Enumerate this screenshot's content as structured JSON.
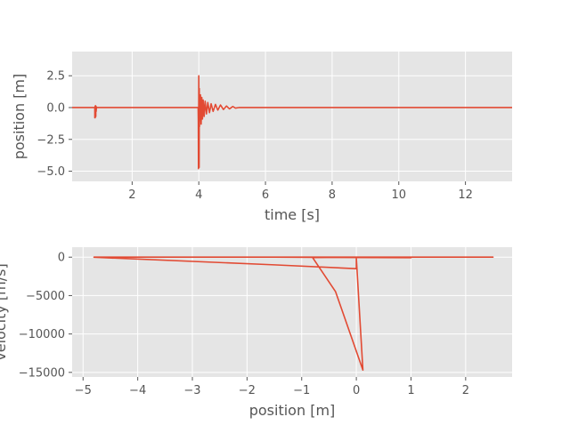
{
  "chart_data": [
    {
      "type": "line",
      "xlabel": "time [s]",
      "ylabel": "position [m]",
      "xlim": [
        0.2,
        13.4
      ],
      "ylim": [
        -5.8,
        4.4
      ],
      "xticks": [
        2,
        4,
        6,
        8,
        10,
        12
      ],
      "xtick_labels": [
        "2",
        "4",
        "6",
        "8",
        "10",
        "12"
      ],
      "yticks": [
        2.5,
        0.0,
        -2.5,
        -5.0
      ],
      "ytick_labels": [
        "2.5",
        "0.0",
        "−2.5",
        "−5.0"
      ],
      "grid": true,
      "series": [
        {
          "color": "#E24A33",
          "x": [
            0.2,
            0.88,
            0.88,
            0.89,
            0.89,
            0.9,
            0.91,
            0.91,
            0.92,
            0.93,
            0.935,
            0.95,
            3.98,
            3.985,
            3.99,
            3.995,
            4.0,
            4.005,
            4.01,
            4.015,
            4.02,
            4.03,
            4.05,
            4.07,
            4.09,
            4.11,
            4.13,
            4.16,
            4.19,
            4.23,
            4.27,
            4.32,
            4.37,
            4.43,
            4.5,
            4.57,
            4.65,
            4.74,
            4.83,
            4.92,
            5.02,
            5.1,
            5.2,
            13.4
          ],
          "y": [
            0.0,
            0.0,
            -0.8,
            0.1,
            -0.8,
            0.15,
            -0.7,
            0.1,
            -0.3,
            0.05,
            0.0,
            0.0,
            0.0,
            -1.0,
            -4.8,
            -3.0,
            2.5,
            0.0,
            -4.7,
            1.5,
            -1.5,
            -0.3,
            1.0,
            -1.3,
            0.8,
            -0.9,
            0.6,
            -0.7,
            0.5,
            -0.5,
            0.4,
            -0.4,
            0.3,
            -0.3,
            0.25,
            -0.2,
            0.2,
            -0.15,
            0.12,
            -0.1,
            0.08,
            -0.04,
            0.0,
            0.0
          ]
        }
      ]
    },
    {
      "type": "line",
      "xlabel": "position [m]",
      "ylabel": "velocity [m/s]",
      "xlim": [
        -5.2,
        2.85
      ],
      "ylim": [
        -15600,
        1300
      ],
      "xticks": [
        -5,
        -4,
        -3,
        -2,
        -1,
        0,
        1,
        2
      ],
      "xtick_labels": [
        "−5",
        "−4",
        "−3",
        "−2",
        "−1",
        "0",
        "1",
        "2"
      ],
      "yticks": [
        0,
        -5000,
        -10000,
        -15000
      ],
      "ytick_labels": [
        "0",
        "−5000",
        "−10000",
        "−15000"
      ],
      "grid": true,
      "series": [
        {
          "color": "#E24A33",
          "x": [
            0.0,
            -0.8,
            -0.38,
            0.12,
            0.0,
            0.0,
            -1.5,
            -4.8,
            -4.8,
            2.5,
            2.5,
            -0.8,
            1.0,
            1.0,
            -0.78,
            -1.5
          ],
          "y": [
            0,
            -50,
            -4500,
            -14700,
            -150,
            -1500,
            -1000,
            -10,
            0,
            0,
            0,
            0,
            0,
            -70,
            -30,
            0
          ]
        }
      ]
    }
  ]
}
